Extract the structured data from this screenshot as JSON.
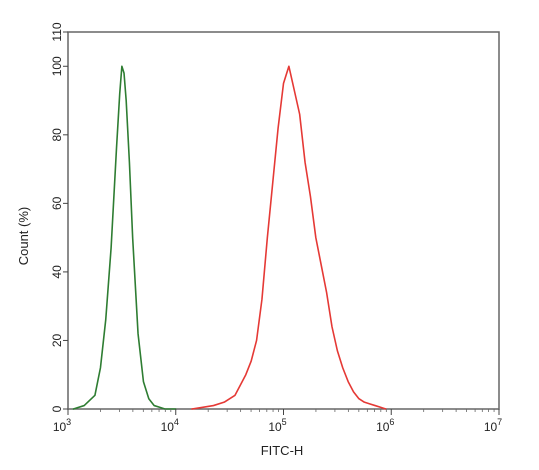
{
  "chart_data": {
    "type": "line",
    "title": "",
    "xlabel": "FITC-H",
    "ylabel": "Count (%)",
    "x_scale": "log10",
    "xlim": [
      1000,
      10000000
    ],
    "ylim": [
      0,
      110
    ],
    "y_ticks": [
      0,
      20,
      40,
      60,
      80,
      100,
      110
    ],
    "x_ticks": [
      {
        "value": 1000,
        "base": "10",
        "exp": "3"
      },
      {
        "value": 10000,
        "base": "10",
        "exp": "4"
      },
      {
        "value": 100000,
        "base": "10",
        "exp": "5"
      },
      {
        "value": 1000000,
        "base": "10",
        "exp": "6"
      },
      {
        "value": 10000000,
        "base": "10",
        "exp": "7"
      }
    ],
    "grid": false,
    "series": [
      {
        "color": "#2e7d32",
        "x": [
          1122,
          1413,
          1778,
          2000,
          2239,
          2512,
          2818,
          3020,
          3162,
          3311,
          3467,
          3715,
          3981,
          4467,
          5012,
          5623,
          6310,
          7079,
          7943,
          8913,
          10000
        ],
        "y": [
          0,
          1,
          4,
          12,
          26,
          47,
          76,
          92,
          100,
          98,
          90,
          72,
          50,
          22,
          8,
          3,
          1,
          0.5,
          0,
          0,
          0
        ]
      },
      {
        "color": "#e53935",
        "x": [
          14125,
          17783,
          22387,
          28184,
          35481,
          39811,
          44668,
          50119,
          56234,
          63096,
          70795,
          79433,
          89125,
          100000,
          112202,
          125893,
          141254,
          158489,
          177828,
          199526,
          223872,
          251189,
          281838,
          316228,
          354813,
          398107,
          446684,
          501187,
          562341,
          630957,
          707946,
          794328,
          891251
        ],
        "y": [
          0,
          0.5,
          1,
          2,
          4,
          7,
          10,
          14,
          20,
          32,
          50,
          66,
          82,
          95,
          100,
          93,
          86,
          72,
          62,
          50,
          42,
          34,
          24,
          17,
          12,
          8,
          5,
          3,
          2,
          1.5,
          1,
          0.5,
          0
        ]
      }
    ]
  }
}
